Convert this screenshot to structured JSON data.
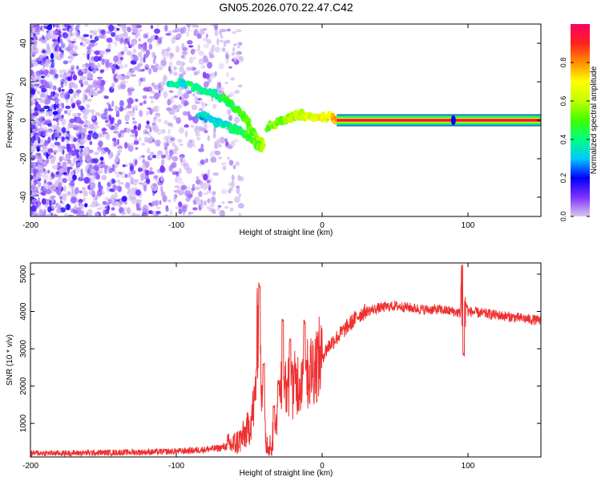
{
  "title": "GN05.2026.070.22.47.C42",
  "chart_data": [
    {
      "type": "heatmap",
      "xlabel": "Height of straight line (km)",
      "ylabel": "Frequency (Hz)",
      "xlim": [
        -200,
        150
      ],
      "ylim": [
        -50,
        50
      ],
      "xticks": [
        -200,
        -100,
        0,
        100
      ],
      "yticks": [
        -40,
        -20,
        0,
        20,
        40
      ],
      "colorbar": {
        "label": "Normalized spectral amplitude",
        "range": [
          0,
          1
        ],
        "ticks": [
          "0.0",
          "0.2",
          "0.4",
          "0.6",
          "0.8"
        ],
        "tick_values": [
          0,
          0.2,
          0.4,
          0.6,
          0.8
        ],
        "stops": [
          "#d8c8f0",
          "#7f30ff",
          "#0000ff",
          "#00c8ff",
          "#00ff80",
          "#40ff00",
          "#c0ff00",
          "#ffff00",
          "#ff9000",
          "#ff2020",
          "#ff0060"
        ]
      },
      "series": [
        {
          "name": "noise scatter",
          "x_range": [
            -200,
            -65
          ],
          "y_range": [
            -50,
            50
          ],
          "density": "high at left, fading toward -65 km"
        },
        {
          "name": "upper chirp branch",
          "points": [
            [
              -105,
              20
            ],
            [
              -90,
              18
            ],
            [
              -75,
              14
            ],
            [
              -65,
              10
            ],
            [
              -58,
              5
            ],
            [
              -52,
              0
            ],
            [
              -48,
              -6
            ],
            [
              -44,
              -10
            ],
            [
              -40,
              -13
            ]
          ]
        },
        {
          "name": "lower branch",
          "points": [
            [
              -85,
              3
            ],
            [
              -75,
              0
            ],
            [
              -65,
              -3
            ],
            [
              -58,
              -5
            ],
            [
              -52,
              -8
            ],
            [
              -46,
              -12
            ],
            [
              -40,
              -15
            ]
          ]
        },
        {
          "name": "near-zero ripple",
          "points": [
            [
              -38,
              -4
            ],
            [
              -32,
              -2
            ],
            [
              -26,
              0
            ],
            [
              -20,
              2
            ],
            [
              -14,
              3
            ],
            [
              -8,
              1
            ],
            [
              0,
              2
            ],
            [
              6,
              2
            ],
            [
              12,
              0
            ]
          ]
        },
        {
          "name": "steady line",
          "points": [
            [
              10,
              0
            ],
            [
              150,
              0
            ]
          ],
          "amplitude": 0.95
        }
      ]
    },
    {
      "type": "line",
      "color": "#ee3030",
      "xlabel": "Height of straight line (km)",
      "ylabel": "SNR (10 * v/v)",
      "xlim": [
        -200,
        150
      ],
      "ylim": [
        100,
        5300
      ],
      "xticks": [
        -200,
        -100,
        0,
        100
      ],
      "yticks": [
        1000,
        2000,
        3000,
        4000,
        5000
      ],
      "x": [
        -200,
        -180,
        -160,
        -140,
        -120,
        -100,
        -90,
        -80,
        -70,
        -60,
        -55,
        -50,
        -46,
        -44,
        -42,
        -40,
        -38,
        -35,
        -32,
        -30,
        -28,
        -25,
        -20,
        -15,
        -10,
        -5,
        0,
        5,
        10,
        15,
        20,
        25,
        30,
        40,
        50,
        60,
        70,
        80,
        90,
        95,
        97,
        100,
        110,
        120,
        130,
        140,
        150
      ],
      "values": [
        200,
        200,
        210,
        220,
        230,
        250,
        270,
        300,
        340,
        450,
        600,
        900,
        1600,
        3800,
        2200,
        900,
        500,
        380,
        600,
        1800,
        1300,
        1900,
        2000,
        2200,
        2300,
        2600,
        2800,
        3100,
        3300,
        3500,
        3700,
        3900,
        4000,
        4100,
        4150,
        4100,
        4050,
        4050,
        4000,
        3950,
        4500,
        4000,
        3950,
        3900,
        3850,
        3800,
        3750
      ],
      "spikes": [
        [
          -43,
          4700
        ],
        [
          -40,
          2600
        ],
        [
          -33,
          1500
        ],
        [
          -30,
          2100
        ],
        [
          -27,
          3800
        ],
        [
          -22,
          3200
        ],
        [
          -12,
          3700
        ],
        [
          96,
          5250
        ],
        [
          97,
          2850
        ]
      ]
    }
  ]
}
